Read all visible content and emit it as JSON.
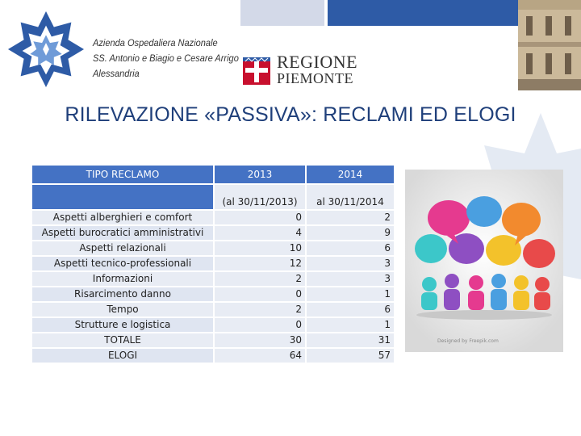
{
  "header": {
    "hospital_name_lines": [
      "Azienda Ospedaliera Nazionale",
      "SS. Antonio e Biagio e Cesare Arrigo",
      "Alessandria"
    ],
    "region_line1": "REGIONE",
    "region_line2": "PIEMONTE"
  },
  "title": "RILEVAZIONE «PASSIVA»: RECLAMI ED ELOGI",
  "table": {
    "headers": [
      "TIPO RECLAMO",
      "2013",
      "2014"
    ],
    "subheaders": [
      "",
      "(al 30/11/2013)",
      "al 30/11/2014"
    ],
    "rows": [
      {
        "label": "Aspetti alberghieri e comfort",
        "y2013": "0",
        "y2014": "2"
      },
      {
        "label": "Aspetti burocratici amministrativi",
        "y2013": "4",
        "y2014": "9"
      },
      {
        "label": "Aspetti relazionali",
        "y2013": "10",
        "y2014": "6"
      },
      {
        "label": "Aspetti tecnico-professionali",
        "y2013": "12",
        "y2014": "3"
      },
      {
        "label": "Informazioni",
        "y2013": "2",
        "y2014": "3"
      },
      {
        "label": "Risarcimento danno",
        "y2013": "0",
        "y2014": "1"
      },
      {
        "label": "Tempo",
        "y2013": "2",
        "y2014": "6"
      },
      {
        "label": "Strutture e logistica",
        "y2013": "0",
        "y2014": "1"
      },
      {
        "label": "TOTALE",
        "y2013": "30",
        "y2014": "31"
      },
      {
        "label": "ELOGI",
        "y2013": "64",
        "y2014": "57"
      }
    ]
  },
  "illustration": {
    "icon": "speech-bubbles-people-icon",
    "credit": "Designed by Freepik.com"
  },
  "colors": {
    "accent": "#2e5ba6",
    "header_cell": "#4472c4",
    "title": "#1f3f7a"
  }
}
